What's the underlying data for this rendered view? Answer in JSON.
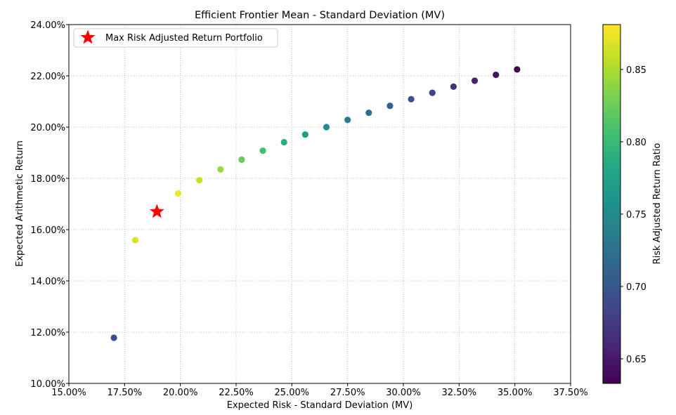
{
  "chart_data": {
    "type": "scatter",
    "title": "Efficient Frontier Mean - Standard Deviation (MV)",
    "xlabel": "Expected Risk - Standard Deviation (MV)",
    "ylabel": "Expected Arithmetic Return",
    "xlim": [
      0.15,
      0.375
    ],
    "ylim": [
      0.1,
      0.24
    ],
    "x_ticks": [
      0.15,
      0.175,
      0.2,
      0.225,
      0.25,
      0.275,
      0.3,
      0.325,
      0.35,
      0.375
    ],
    "x_tick_labels": [
      "15.00%",
      "17.50%",
      "20.00%",
      "22.50%",
      "25.00%",
      "27.50%",
      "30.00%",
      "32.50%",
      "35.00%",
      "37.50%"
    ],
    "y_ticks": [
      0.1,
      0.12,
      0.14,
      0.16,
      0.18,
      0.2,
      0.22,
      0.24
    ],
    "y_tick_labels": [
      "10.00%",
      "12.00%",
      "14.00%",
      "16.00%",
      "18.00%",
      "20.00%",
      "22.00%",
      "24.00%"
    ],
    "grid": true,
    "legend": {
      "placement": "top-left",
      "entries": [
        "Max Risk Adjusted Return Portfolio"
      ]
    },
    "colorbar": {
      "label": "Risk Adjusted Return Ratio",
      "colormap": "viridis",
      "range": [
        0.633,
        0.881
      ],
      "ticks": [
        0.65,
        0.7,
        0.75,
        0.8,
        0.85
      ],
      "tick_labels": [
        "0.65",
        "0.70",
        "0.75",
        "0.80",
        "0.85"
      ]
    },
    "points": [
      {
        "x": 0.1702,
        "y": 0.1178,
        "ratio": 0.692
      },
      {
        "x": 0.1798,
        "y": 0.1559,
        "ratio": 0.867
      },
      {
        "x": 0.199,
        "y": 0.1741,
        "ratio": 0.875
      },
      {
        "x": 0.2085,
        "y": 0.1793,
        "ratio": 0.86
      },
      {
        "x": 0.218,
        "y": 0.1835,
        "ratio": 0.842
      },
      {
        "x": 0.2275,
        "y": 0.1873,
        "ratio": 0.823
      },
      {
        "x": 0.237,
        "y": 0.1908,
        "ratio": 0.805
      },
      {
        "x": 0.2465,
        "y": 0.1941,
        "ratio": 0.787
      },
      {
        "x": 0.256,
        "y": 0.1971,
        "ratio": 0.77
      },
      {
        "x": 0.2655,
        "y": 0.2,
        "ratio": 0.753
      },
      {
        "x": 0.275,
        "y": 0.2028,
        "ratio": 0.737
      },
      {
        "x": 0.2845,
        "y": 0.2056,
        "ratio": 0.722
      },
      {
        "x": 0.294,
        "y": 0.2083,
        "ratio": 0.708
      },
      {
        "x": 0.3035,
        "y": 0.2109,
        "ratio": 0.695
      },
      {
        "x": 0.313,
        "y": 0.2134,
        "ratio": 0.682
      },
      {
        "x": 0.3225,
        "y": 0.2158,
        "ratio": 0.669
      },
      {
        "x": 0.332,
        "y": 0.2181,
        "ratio": 0.657
      },
      {
        "x": 0.3415,
        "y": 0.2204,
        "ratio": 0.645
      },
      {
        "x": 0.351,
        "y": 0.2225,
        "ratio": 0.634
      }
    ],
    "highlight": {
      "label": "Max Risk Adjusted Return Portfolio",
      "x": 0.1895,
      "y": 0.167,
      "color": "#ff0000",
      "marker": "star"
    }
  }
}
